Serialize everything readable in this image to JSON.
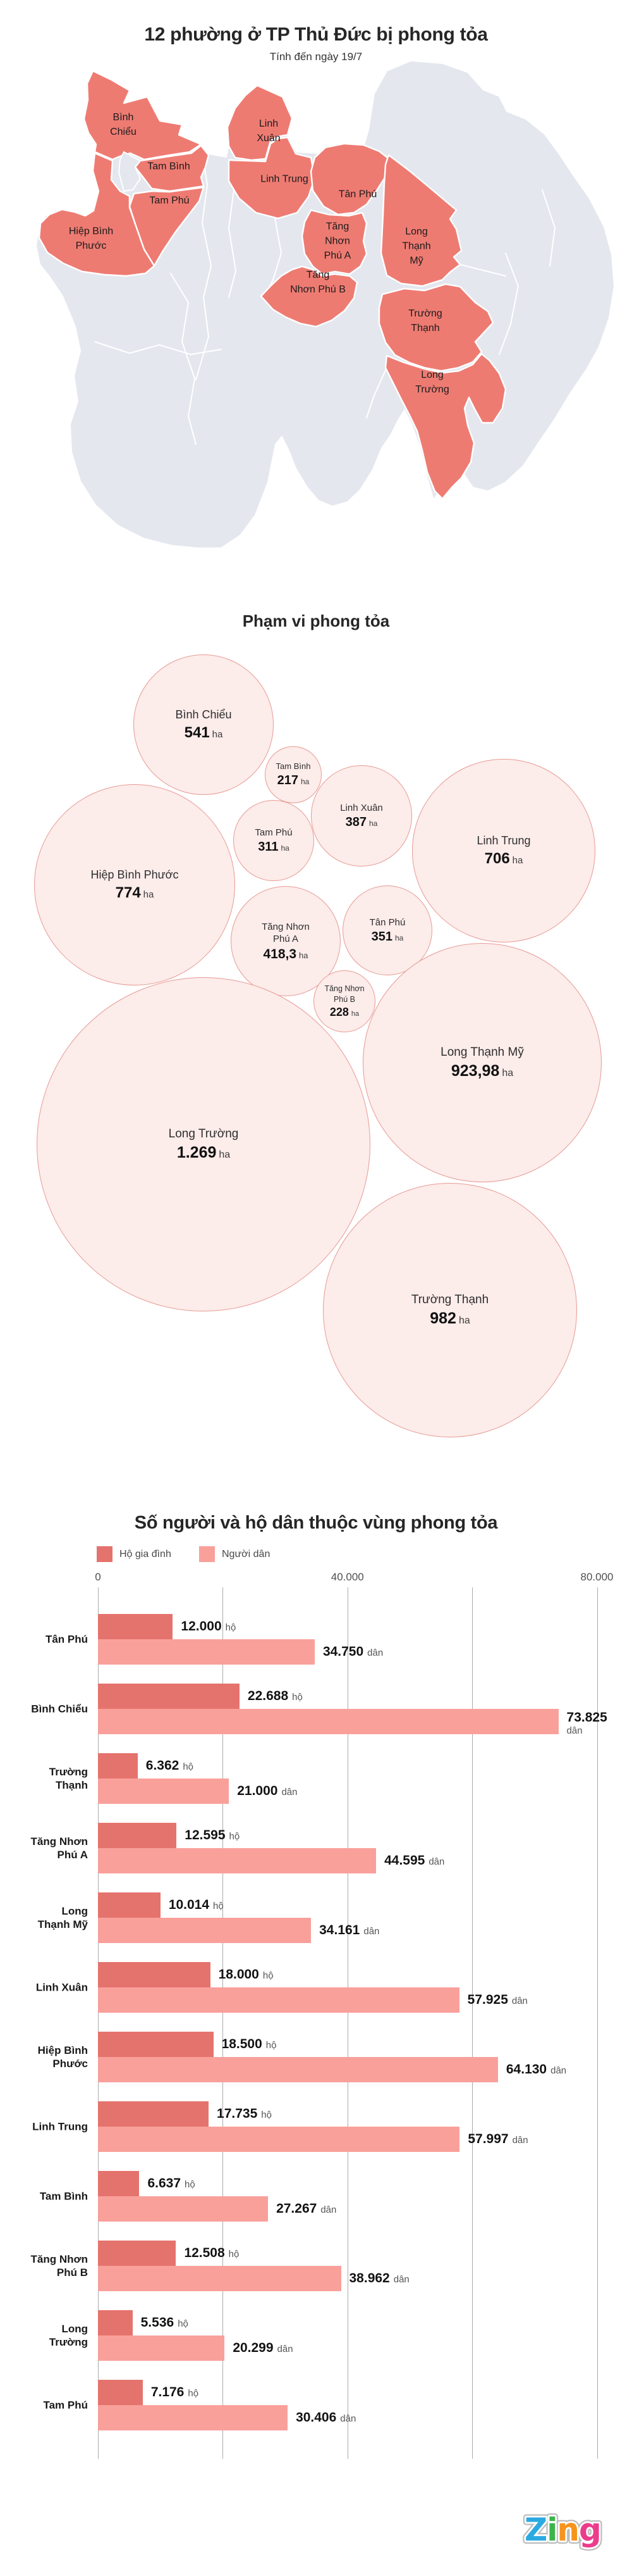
{
  "header": {
    "title": "12 phường ở TP Thủ Đức bị phong tỏa",
    "subtitle": "Tính đến ngày 19/7"
  },
  "colors": {
    "ward_highlight": "#EE7B72",
    "ward_base": "#E4E7EE",
    "bubble_fill": "#FCECEA",
    "bubble_border": "#E79B94",
    "households": "#E5736D",
    "residents": "#F9A09B",
    "grid": "#ABABAB"
  },
  "map": {
    "wards": [
      {
        "id": "binh-chieu",
        "label_lines": [
          "Bình",
          "Chiểu"
        ]
      },
      {
        "id": "linh-xuan",
        "label_lines": [
          "Linh",
          "Xuân"
        ]
      },
      {
        "id": "tam-binh",
        "label_lines": [
          "Tam Bình"
        ]
      },
      {
        "id": "tam-phu",
        "label_lines": [
          "Tam Phú"
        ]
      },
      {
        "id": "linh-trung",
        "label_lines": [
          "Linh Trung"
        ]
      },
      {
        "id": "tan-phu",
        "label_lines": [
          "Tân Phú"
        ]
      },
      {
        "id": "hiep-binh-phuoc",
        "label_lines": [
          "Hiệp Bình",
          "Phước"
        ]
      },
      {
        "id": "tang-nhon-phu-a",
        "label_lines": [
          "Tăng",
          "Nhơn",
          "Phú A"
        ]
      },
      {
        "id": "long-thanh-my",
        "label_lines": [
          "Long",
          "Thạnh",
          "Mỹ"
        ]
      },
      {
        "id": "tang-nhon-phu-b",
        "label_lines": [
          "Tăng",
          "Nhơn Phú B"
        ]
      },
      {
        "id": "truong-thanh",
        "label_lines": [
          "Trường",
          "Thạnh"
        ]
      },
      {
        "id": "long-truong",
        "label_lines": [
          "Long",
          "Trường"
        ]
      }
    ]
  },
  "bubble_section": {
    "title": "Phạm vi phong tỏa",
    "unit": "ha",
    "items": [
      {
        "id": "binh-chieu",
        "name_lines": [
          "Bình Chiểu"
        ],
        "value": "541",
        "area_ha": 541
      },
      {
        "id": "tam-binh",
        "name_lines": [
          "Tam Bình"
        ],
        "value": "217",
        "area_ha": 217
      },
      {
        "id": "linh-xuan",
        "name_lines": [
          "Linh Xuân"
        ],
        "value": "387",
        "area_ha": 387
      },
      {
        "id": "tam-phu",
        "name_lines": [
          "Tam Phú"
        ],
        "value": "311",
        "area_ha": 311
      },
      {
        "id": "linh-trung",
        "name_lines": [
          "Linh Trung"
        ],
        "value": "706",
        "area_ha": 706
      },
      {
        "id": "hiep-binh-phuoc",
        "name_lines": [
          "Hiệp Bình Phước"
        ],
        "value": "774",
        "area_ha": 774
      },
      {
        "id": "tang-nhon-phu-a",
        "name_lines": [
          "Tăng Nhơn",
          "Phú A"
        ],
        "value": "418,3",
        "area_ha": 418.3
      },
      {
        "id": "tan-phu",
        "name_lines": [
          "Tân Phú"
        ],
        "value": "351",
        "area_ha": 351
      },
      {
        "id": "tang-nhon-phu-b",
        "name_lines": [
          "Tăng Nhơn",
          "Phú B"
        ],
        "value": "228",
        "area_ha": 228
      },
      {
        "id": "long-thanh-my",
        "name_lines": [
          "Long Thạnh Mỹ"
        ],
        "value": "923,98",
        "area_ha": 923.98
      },
      {
        "id": "long-truong",
        "name_lines": [
          "Long Trường"
        ],
        "value": "1.269",
        "area_ha": 1269
      },
      {
        "id": "truong-thanh",
        "name_lines": [
          "Trường Thạnh"
        ],
        "value": "982",
        "area_ha": 982
      }
    ]
  },
  "bar_section": {
    "title": "Số người và hộ dân thuộc vùng phong tỏa",
    "legend": [
      {
        "label": "Hộ gia đình"
      },
      {
        "label": "Người dân"
      }
    ],
    "unit_ho": "hộ",
    "unit_dan": "dân",
    "axis_ticks": [
      {
        "label": "0",
        "value": 0
      },
      {
        "label": "40.000",
        "value": 40000
      },
      {
        "label": "80.000",
        "value": 80000
      }
    ],
    "rows": [
      {
        "label_lines": [
          "Tân Phú"
        ],
        "ho": 12000,
        "ho_display": "12.000",
        "dan": 34750,
        "dan_display": "34.750",
        "wrap_dan": false
      },
      {
        "label_lines": [
          "Bình Chiểu"
        ],
        "ho": 22688,
        "ho_display": "22.688",
        "dan": 73825,
        "dan_display": "73.825",
        "wrap_dan": true
      },
      {
        "label_lines": [
          "Trường",
          "Thạnh"
        ],
        "ho": 6362,
        "ho_display": "6.362",
        "dan": 21000,
        "dan_display": "21.000",
        "wrap_dan": false
      },
      {
        "label_lines": [
          "Tăng Nhơn",
          "Phú A"
        ],
        "ho": 12595,
        "ho_display": "12.595",
        "dan": 44595,
        "dan_display": "44.595",
        "wrap_dan": false
      },
      {
        "label_lines": [
          "Long",
          "Thạnh Mỹ"
        ],
        "ho": 10014,
        "ho_display": "10.014",
        "dan": 34161,
        "dan_display": "34.161",
        "wrap_dan": false
      },
      {
        "label_lines": [
          "Linh Xuân"
        ],
        "ho": 18000,
        "ho_display": "18.000",
        "dan": 57925,
        "dan_display": "57.925",
        "wrap_dan": false
      },
      {
        "label_lines": [
          "Hiệp Bình",
          "Phước"
        ],
        "ho": 18500,
        "ho_display": "18.500",
        "dan": 64130,
        "dan_display": "64.130",
        "wrap_dan": false
      },
      {
        "label_lines": [
          "Linh Trung"
        ],
        "ho": 17735,
        "ho_display": "17.735",
        "dan": 57997,
        "dan_display": "57.997",
        "wrap_dan": false
      },
      {
        "label_lines": [
          "Tam Bình"
        ],
        "ho": 6637,
        "ho_display": "6.637",
        "dan": 27267,
        "dan_display": "27.267",
        "wrap_dan": false
      },
      {
        "label_lines": [
          "Tăng Nhơn",
          "Phú B"
        ],
        "ho": 12508,
        "ho_display": "12.508",
        "dan": 38962,
        "dan_display": "38.962",
        "wrap_dan": false
      },
      {
        "label_lines": [
          "Long",
          "Trường"
        ],
        "ho": 5536,
        "ho_display": "5.536",
        "dan": 20299,
        "dan_display": "20.299",
        "wrap_dan": false
      },
      {
        "label_lines": [
          "Tam Phú"
        ],
        "ho": 7176,
        "ho_display": "7.176",
        "dan": 30406,
        "dan_display": "30.406",
        "wrap_dan": false
      }
    ]
  },
  "footer": {
    "logo_letters": [
      {
        "char": "Z",
        "color": "#2BAAE2"
      },
      {
        "char": "i",
        "color": "#3CB44B"
      },
      {
        "char": "n",
        "color": "#F7941E"
      },
      {
        "char": "g",
        "color": "#EC3C8C"
      }
    ]
  },
  "chart_data": [
    {
      "type": "bubble",
      "title": "Phạm vi phong tỏa",
      "unit": "ha",
      "points": [
        {
          "name": "Bình Chiểu",
          "area_ha": 541
        },
        {
          "name": "Tam Bình",
          "area_ha": 217
        },
        {
          "name": "Linh Xuân",
          "area_ha": 387
        },
        {
          "name": "Tam Phú",
          "area_ha": 311
        },
        {
          "name": "Linh Trung",
          "area_ha": 706
        },
        {
          "name": "Hiệp Bình Phước",
          "area_ha": 774
        },
        {
          "name": "Tăng Nhơn Phú A",
          "area_ha": 418.3
        },
        {
          "name": "Tân Phú",
          "area_ha": 351
        },
        {
          "name": "Tăng Nhơn Phú B",
          "area_ha": 228
        },
        {
          "name": "Long Thạnh Mỹ",
          "area_ha": 923.98
        },
        {
          "name": "Long Trường",
          "area_ha": 1269
        },
        {
          "name": "Trường Thạnh",
          "area_ha": 982
        }
      ]
    },
    {
      "type": "bar",
      "orientation": "horizontal",
      "title": "Số người và hộ dân thuộc vùng phong tỏa",
      "categories": [
        "Tân Phú",
        "Bình Chiểu",
        "Trường Thạnh",
        "Tăng Nhơn Phú A",
        "Long Thạnh Mỹ",
        "Linh Xuân",
        "Hiệp Bình Phước",
        "Linh Trung",
        "Tam Bình",
        "Tăng Nhơn Phú B",
        "Long Trường",
        "Tam Phú"
      ],
      "series": [
        {
          "name": "Hộ gia đình",
          "values": [
            12000,
            22688,
            6362,
            12595,
            10014,
            18000,
            18500,
            17735,
            6637,
            12508,
            5536,
            7176
          ]
        },
        {
          "name": "Người dân",
          "values": [
            34750,
            73825,
            21000,
            44595,
            34161,
            57925,
            64130,
            57997,
            27267,
            38962,
            20299,
            30406
          ]
        }
      ],
      "xlim": [
        0,
        80000
      ],
      "x_ticks": [
        0,
        40000,
        80000
      ],
      "grid": true,
      "legend_position": "top"
    }
  ]
}
